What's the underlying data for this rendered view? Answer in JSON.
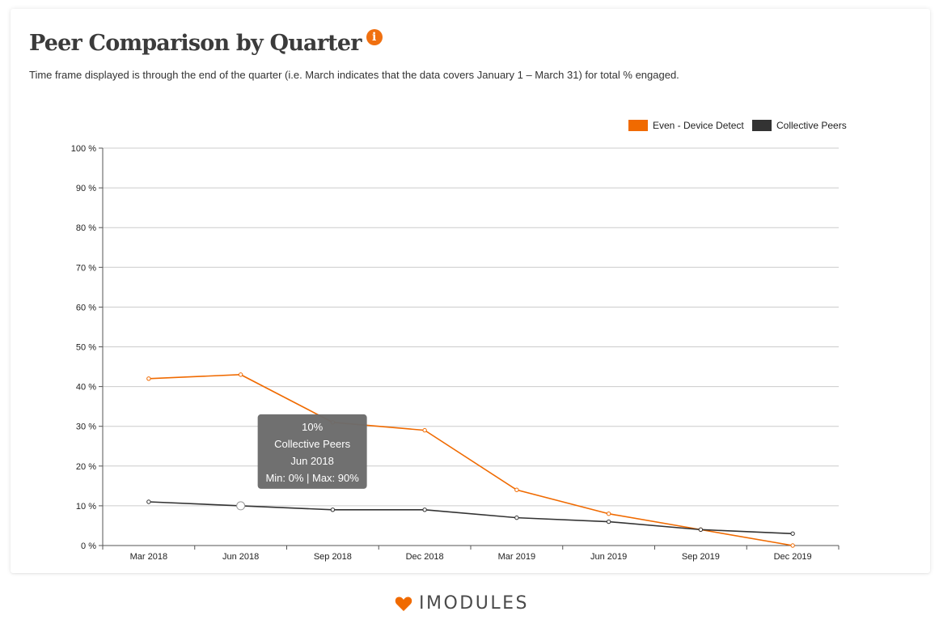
{
  "header": {
    "title": "Peer Comparison by Quarter",
    "info_icon": "info-icon",
    "subtitle": "Time frame displayed is through the end of the quarter (i.e. March indicates that the data covers January 1 – March 31) for total % engaged."
  },
  "colors": {
    "accent": "#f06a00",
    "peers": "#333333",
    "grid": "#cccccc",
    "tooltip_bg": "#6b6b6b"
  },
  "chart_data": {
    "type": "line",
    "categories": [
      "Mar 2018",
      "Jun 2018",
      "Sep 2018",
      "Dec 2018",
      "Mar 2019",
      "Jun 2019",
      "Sep 2019",
      "Dec 2019"
    ],
    "series": [
      {
        "name": "Even - Device Detect",
        "color": "#f06a00",
        "values": [
          42,
          43,
          31,
          29,
          14,
          8,
          4,
          0
        ]
      },
      {
        "name": "Collective Peers",
        "color": "#333333",
        "values": [
          11,
          10,
          9,
          9,
          7,
          6,
          4,
          3
        ]
      }
    ],
    "y_ticks": [
      "0 %",
      "10 %",
      "20 %",
      "30 %",
      "40 %",
      "50 %",
      "60 %",
      "70 %",
      "80 %",
      "90 %",
      "100 %"
    ],
    "ylim": [
      0,
      100
    ],
    "grid": true,
    "legend_position": "top-right",
    "tooltip": {
      "series_index": 1,
      "point_index": 1,
      "lines": [
        "10%",
        "Collective Peers",
        "Jun 2018",
        "Min: 0% | Max: 90%"
      ]
    }
  },
  "footer": {
    "logo_text": "IMODULES",
    "logo_icon": "heart-icon"
  }
}
